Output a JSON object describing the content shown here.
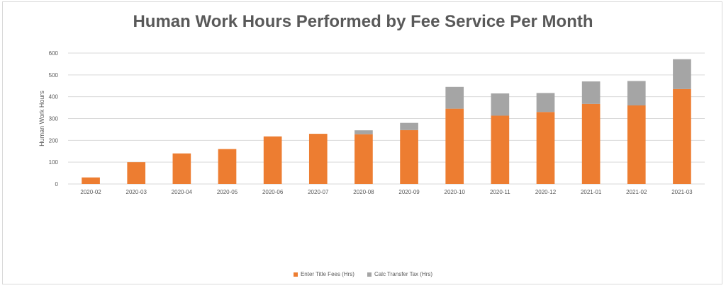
{
  "chart_data": {
    "type": "bar",
    "stacked": true,
    "title": "Human Work Hours Performed by Fee Service Per Month",
    "xlabel": "",
    "ylabel": "Human Work Hours",
    "ylim": [
      0,
      600
    ],
    "yticks": [
      0,
      100,
      200,
      300,
      400,
      500,
      600
    ],
    "grid": true,
    "legend_position": "bottom",
    "categories": [
      "2020-02",
      "2020-03",
      "2020-04",
      "2020-05",
      "2020-06",
      "2020-07",
      "2020-08",
      "2020-09",
      "2020-10",
      "2020-11",
      "2020-12",
      "2021-01",
      "2021-02",
      "2021-03"
    ],
    "series": [
      {
        "name": "Enter Title Fees (Hrs)",
        "color": "#ed7d31",
        "values": [
          30,
          100,
          140,
          160,
          218,
          230,
          228,
          247,
          345,
          313,
          330,
          367,
          360,
          435
        ]
      },
      {
        "name": "Calc Transfer Tax (Hrs)",
        "color": "#a5a5a5",
        "values": [
          0,
          0,
          0,
          0,
          0,
          0,
          18,
          33,
          100,
          102,
          87,
          103,
          112,
          137
        ]
      }
    ]
  }
}
